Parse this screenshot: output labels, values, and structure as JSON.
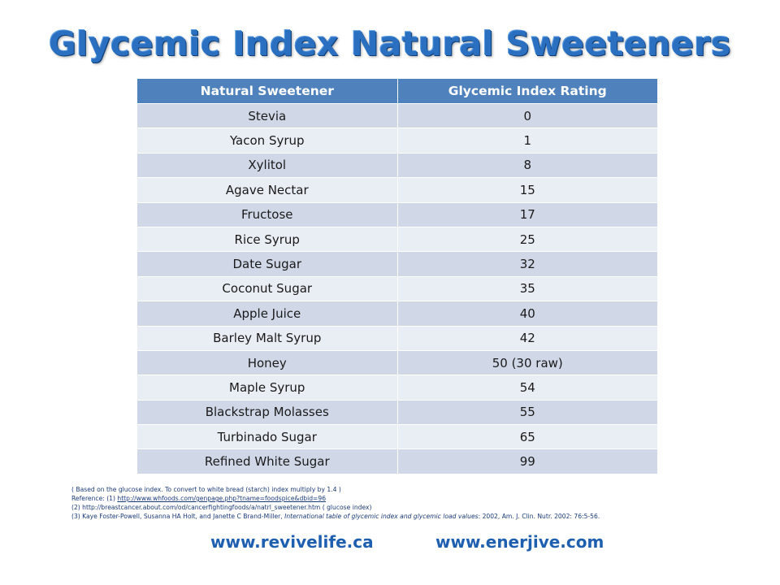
{
  "title": "Glycemic Index Natural Sweeteners",
  "table": {
    "headers": [
      "Natural Sweetener",
      "Glycemic Index Rating"
    ],
    "rows": [
      [
        "Stevia",
        "0"
      ],
      [
        "Yacon Syrup",
        "1"
      ],
      [
        "Xylitol",
        "8"
      ],
      [
        "Agave Nectar",
        "15"
      ],
      [
        "Fructose",
        "17"
      ],
      [
        "Rice Syrup",
        "25"
      ],
      [
        "Date Sugar",
        "32"
      ],
      [
        "Coconut Sugar",
        "35"
      ],
      [
        "Apple Juice",
        "40"
      ],
      [
        "Barley Malt Syrup",
        "42"
      ],
      [
        "Honey",
        "50 (30 raw)"
      ],
      [
        "Maple Syrup",
        "54"
      ],
      [
        "Blackstrap Molasses",
        "55"
      ],
      [
        "Turbinado Sugar",
        "65"
      ],
      [
        "Refined White Sugar",
        "99"
      ]
    ]
  },
  "notes": {
    "line1": "( Based on the glucose index.  To convert to white bread (starch) index  multiply by 1.4 )",
    "line2_prefix": "Reference: (1) ",
    "line2_link": "http://www.whfoods.com/genpage.php?tname=foodspice&dbid=96",
    "line3": "(2) http://breastcancer.about.com/od/cancerfightingfoods/a/natrl_sweetener.htm  ( glucose index)",
    "line4_prefix": "(3) Kaye Foster-Powell, Susanna HA Holt, and Janette C Brand-Miller, ",
    "line4_italic": "International table of glycemic index and glycemic load values",
    "line4_suffix": ": 2002, Am. J. Clin. Nutr. 2002: 76:5-56."
  },
  "footer": {
    "site_left": "www.revivelife.ca",
    "site_right": "www.enerjive.com"
  },
  "colors": {
    "title": "#2a6fc0",
    "header_bg": "#4f81bd",
    "row_odd": "#d0d8e8",
    "row_even": "#e9edf4",
    "footer_link": "#1f5fb0"
  }
}
